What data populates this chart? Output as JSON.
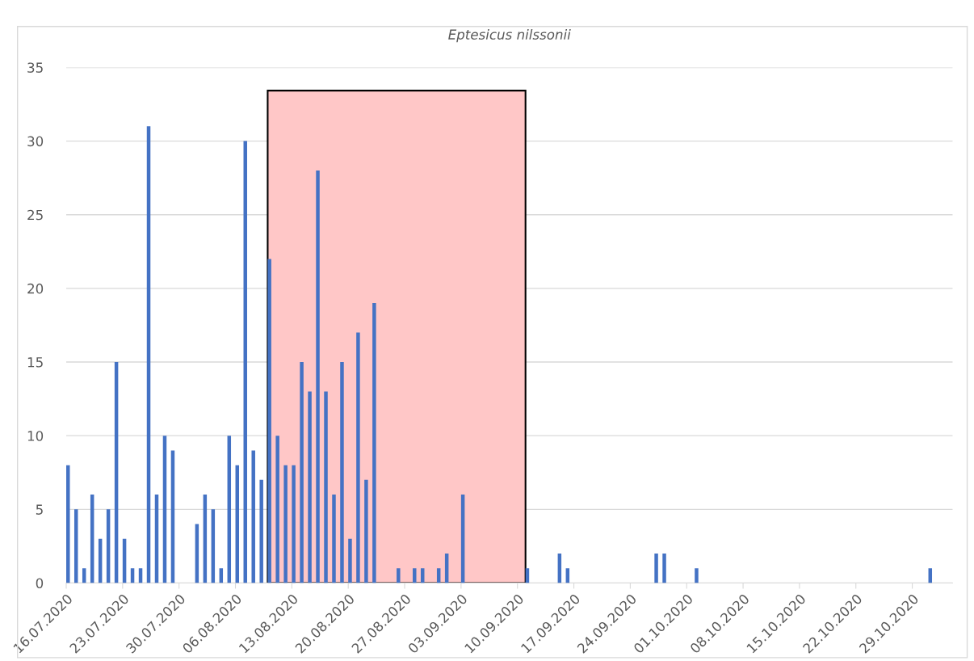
{
  "chart_data": {
    "type": "bar",
    "title": "Eptesicus nilssonii",
    "x": [
      "2020-07-16",
      "2020-07-17",
      "2020-07-18",
      "2020-07-19",
      "2020-07-20",
      "2020-07-21",
      "2020-07-22",
      "2020-07-23",
      "2020-07-24",
      "2020-07-25",
      "2020-07-26",
      "2020-07-27",
      "2020-07-28",
      "2020-07-29",
      "2020-08-01",
      "2020-08-02",
      "2020-08-03",
      "2020-08-04",
      "2020-08-05",
      "2020-08-06",
      "2020-08-07",
      "2020-08-08",
      "2020-08-09",
      "2020-08-10",
      "2020-08-11",
      "2020-08-12",
      "2020-08-13",
      "2020-08-14",
      "2020-08-15",
      "2020-08-16",
      "2020-08-17",
      "2020-08-18",
      "2020-08-19",
      "2020-08-20",
      "2020-08-21",
      "2020-08-22",
      "2020-08-23",
      "2020-08-26",
      "2020-08-28",
      "2020-08-29",
      "2020-08-31",
      "2020-09-01",
      "2020-09-03",
      "2020-09-11",
      "2020-09-15",
      "2020-09-16",
      "2020-09-27",
      "2020-09-28",
      "2020-10-02",
      "2020-10-31"
    ],
    "values": [
      8,
      5,
      1,
      6,
      3,
      5,
      15,
      3,
      1,
      1,
      31,
      6,
      10,
      9,
      4,
      6,
      5,
      1,
      10,
      8,
      30,
      9,
      7,
      22,
      10,
      8,
      8,
      15,
      13,
      28,
      13,
      6,
      15,
      3,
      17,
      7,
      19,
      1,
      1,
      1,
      1,
      2,
      6,
      1,
      2,
      1,
      2,
      2,
      1,
      1
    ],
    "color": "#4472c4",
    "xlim": [
      "2020-07-16",
      "2020-11-03"
    ],
    "xticks": [
      {
        "value": "2020-07-16",
        "label": "16.07.2020"
      },
      {
        "value": "2020-07-23",
        "label": "23.07.2020"
      },
      {
        "value": "2020-07-30",
        "label": "30.07.2020"
      },
      {
        "value": "2020-08-06",
        "label": "06.08.2020"
      },
      {
        "value": "2020-08-13",
        "label": "13.08.2020"
      },
      {
        "value": "2020-08-20",
        "label": "20.08.2020"
      },
      {
        "value": "2020-08-27",
        "label": "27.08.2020"
      },
      {
        "value": "2020-09-03",
        "label": "03.09.2020"
      },
      {
        "value": "2020-09-10",
        "label": "10.09.2020"
      },
      {
        "value": "2020-09-17",
        "label": "17.09.2020"
      },
      {
        "value": "2020-09-24",
        "label": "24.09.2020"
      },
      {
        "value": "2020-10-01",
        "label": "01.10.2020"
      },
      {
        "value": "2020-10-08",
        "label": "08.10.2020"
      },
      {
        "value": "2020-10-15",
        "label": "15.10.2020"
      },
      {
        "value": "2020-10-22",
        "label": "22.10.2020"
      },
      {
        "value": "2020-10-29",
        "label": "29.10.2020"
      }
    ],
    "ylim": [
      0,
      35
    ],
    "yticks": [
      0,
      5,
      10,
      15,
      20,
      25,
      30,
      35
    ],
    "grid": "y",
    "bands": [
      {
        "axis": "x",
        "from": "2020-08-10",
        "to": "2020-09-11",
        "color": "#ffc7c7"
      }
    ]
  }
}
